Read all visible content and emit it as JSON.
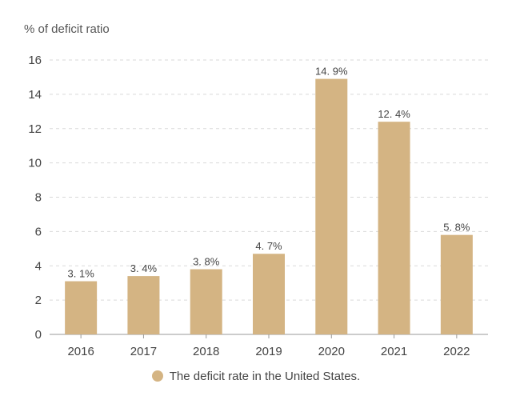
{
  "chart_data": {
    "type": "bar",
    "title": "",
    "ylabel": "% of deficit ratio",
    "xlabel": "",
    "categories": [
      "2016",
      "2017",
      "2018",
      "2019",
      "2020",
      "2021",
      "2022"
    ],
    "series": [
      {
        "name": "The deficit rate in the United States.",
        "values": [
          3.1,
          3.4,
          3.8,
          4.7,
          14.9,
          12.4,
          5.8
        ],
        "labels": [
          "3. 1%",
          "3. 4%",
          "3. 8%",
          "4. 7%",
          "14. 9%",
          "12. 4%",
          "5. 8%"
        ]
      }
    ],
    "ylim": [
      0,
      16
    ],
    "yticks": [
      0,
      2,
      4,
      6,
      8,
      10,
      12,
      14,
      16
    ],
    "grid": true,
    "legend_position": "bottom-center",
    "colors": {
      "bar": "#d4b483",
      "grid": "#d9d9d9",
      "axis": "#999999",
      "text": "#444444"
    }
  }
}
